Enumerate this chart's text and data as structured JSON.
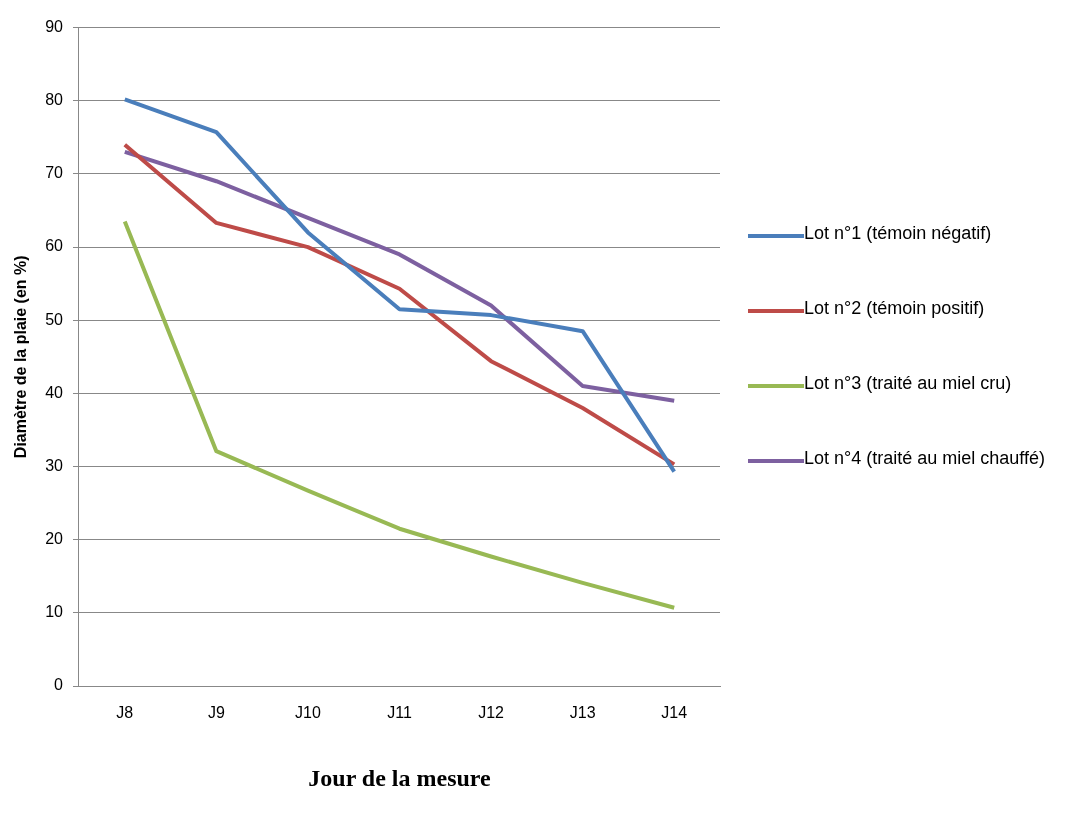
{
  "chart_data": {
    "type": "line",
    "xlabel": "Jour de la mesure",
    "ylabel": "Diamètre de la plaie (en %)",
    "categories": [
      "J8",
      "J9",
      "J10",
      "J11",
      "J12",
      "J13",
      "J14"
    ],
    "series": [
      {
        "name": "Lot n°1 (témoin négatif)",
        "color": "#4a7ebb",
        "values": [
          80.2,
          75.7,
          62,
          51.5,
          50.7,
          48.5,
          29.3
        ]
      },
      {
        "name": "Lot n°2 (témoin positif)",
        "color": "#be4b48",
        "values": [
          74,
          63.3,
          60,
          54.3,
          44.4,
          38,
          30.3
        ]
      },
      {
        "name": "Lot n°3 (traité au miel cru)",
        "color": "#98b954",
        "values": [
          63.5,
          32.1,
          26.7,
          21.5,
          17.7,
          14.1,
          10.7
        ]
      },
      {
        "name": "Lot n°4 (traité au miel chauffé)",
        "color": "#7d60a0",
        "values": [
          73,
          69,
          64,
          59,
          52,
          41,
          39
        ]
      }
    ],
    "ylim": [
      0,
      90
    ],
    "yticks": [
      0,
      10,
      20,
      30,
      40,
      50,
      60,
      70,
      80,
      90
    ],
    "grid": "y",
    "legend": "right",
    "marker": "none",
    "line_style": "solid"
  }
}
